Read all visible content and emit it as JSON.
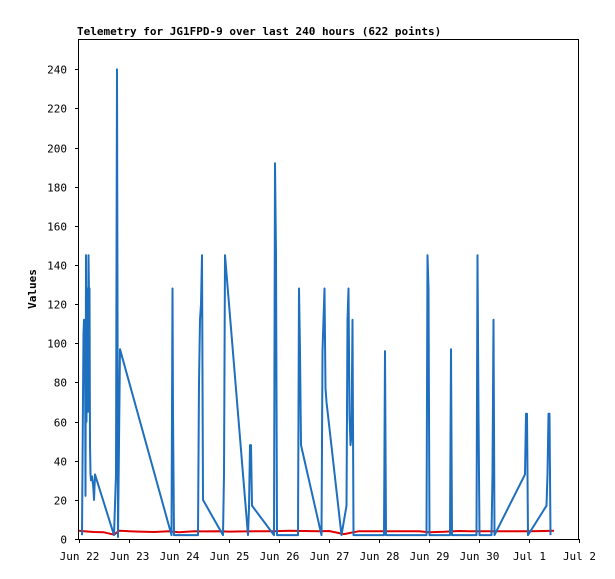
{
  "chart_data": {
    "type": "line",
    "title": "Telemetry for JG1FPD-9 over last 240 hours (622 points)",
    "xlabel": "",
    "ylabel": "Values",
    "xlim": [
      0,
      10
    ],
    "ylim": [
      0,
      255
    ],
    "grid": false,
    "legend": "none",
    "x_ticks": [
      {
        "v": 0,
        "label": "Jun 22"
      },
      {
        "v": 1,
        "label": "Jun 23"
      },
      {
        "v": 2,
        "label": "Jun 24"
      },
      {
        "v": 3,
        "label": "Jun 25"
      },
      {
        "v": 4,
        "label": "Jun 26"
      },
      {
        "v": 5,
        "label": "Jun 27"
      },
      {
        "v": 6,
        "label": "Jun 28"
      },
      {
        "v": 7,
        "label": "Jun 29"
      },
      {
        "v": 8,
        "label": "Jun 30"
      },
      {
        "v": 9,
        "label": "Jul 1"
      },
      {
        "v": 10,
        "label": "Jul 2"
      }
    ],
    "y_ticks": [
      0,
      20,
      40,
      60,
      80,
      100,
      120,
      140,
      160,
      180,
      200,
      220,
      240
    ],
    "series": [
      {
        "color": "#1f6fbf",
        "x": [
          0.06,
          0.08,
          0.09,
          0.1,
          0.11,
          0.12,
          0.13,
          0.14,
          0.15,
          0.16,
          0.17,
          0.18,
          0.19,
          0.2,
          0.21,
          0.22,
          0.23,
          0.24,
          0.26,
          0.28,
          0.29,
          0.3,
          0.32,
          0.7,
          0.74,
          0.76,
          0.78,
          0.82,
          1.85,
          1.87,
          1.88,
          1.9,
          2.38,
          2.4,
          2.42,
          2.44,
          2.46,
          2.48,
          2.88,
          2.9,
          2.92,
          3.38,
          3.4,
          3.42,
          3.44,
          3.46,
          3.9,
          3.92,
          3.94,
          3.96,
          4.38,
          4.4,
          4.42,
          4.44,
          4.85,
          4.87,
          4.89,
          4.91,
          4.93,
          4.95,
          5.25,
          5.35,
          5.37,
          5.39,
          5.41,
          5.43,
          5.45,
          5.47,
          5.49,
          6.1,
          6.12,
          6.14,
          6.95,
          6.97,
          6.99,
          7.01,
          7.42,
          7.44,
          7.46,
          7.95,
          7.97,
          7.99,
          8.01,
          8.25,
          8.27,
          8.29,
          8.31,
          8.92,
          8.94,
          8.96,
          8.98,
          9.35,
          9.37,
          9.39,
          9.41,
          9.43
        ],
        "y": [
          2,
          72,
          105,
          112,
          80,
          100,
          22,
          145,
          60,
          105,
          128,
          65,
          145,
          125,
          128,
          48,
          33,
          30,
          32,
          28,
          25,
          20,
          33,
          2,
          33,
          240,
          1,
          97,
          2,
          128,
          64,
          2,
          2,
          80,
          112,
          120,
          145,
          20,
          2,
          33,
          145,
          2,
          16,
          48,
          48,
          17,
          2,
          192,
          145,
          2,
          2,
          128,
          96,
          48,
          2,
          96,
          112,
          128,
          77,
          70,
          2,
          17,
          112,
          128,
          64,
          48,
          53,
          112,
          2,
          2,
          96,
          2,
          2,
          145,
          128,
          2,
          2,
          97,
          2,
          2,
          145,
          64,
          2,
          2,
          33,
          112,
          2,
          33,
          64,
          64,
          2,
          17,
          33,
          64,
          64,
          2
        ]
      },
      {
        "color": "#e00000",
        "x": [
          0.0,
          0.1,
          0.2,
          0.3,
          0.5,
          0.7,
          0.8,
          1.0,
          1.2,
          1.5,
          1.8,
          2.0,
          2.3,
          2.5,
          2.8,
          3.0,
          3.3,
          3.6,
          3.9,
          4.2,
          4.5,
          4.8,
          5.0,
          5.3,
          5.6,
          6.0,
          6.4,
          6.8,
          7.0,
          7.3,
          7.6,
          7.8,
          8.0,
          8.3,
          8.6,
          9.0,
          9.3,
          9.5
        ],
        "y": [
          4.2,
          4.0,
          3.8,
          3.6,
          3.4,
          2.2,
          4.2,
          4.0,
          3.8,
          3.6,
          4.0,
          3.5,
          4.0,
          3.9,
          4.0,
          3.8,
          3.9,
          4.0,
          4.0,
          4.2,
          4.1,
          4.0,
          4.1,
          2.5,
          4.0,
          4.0,
          4.0,
          4.0,
          3.5,
          3.7,
          4.1,
          4.0,
          4.0,
          4.0,
          4.0,
          4.0,
          4.1,
          4.2
        ]
      }
    ]
  }
}
